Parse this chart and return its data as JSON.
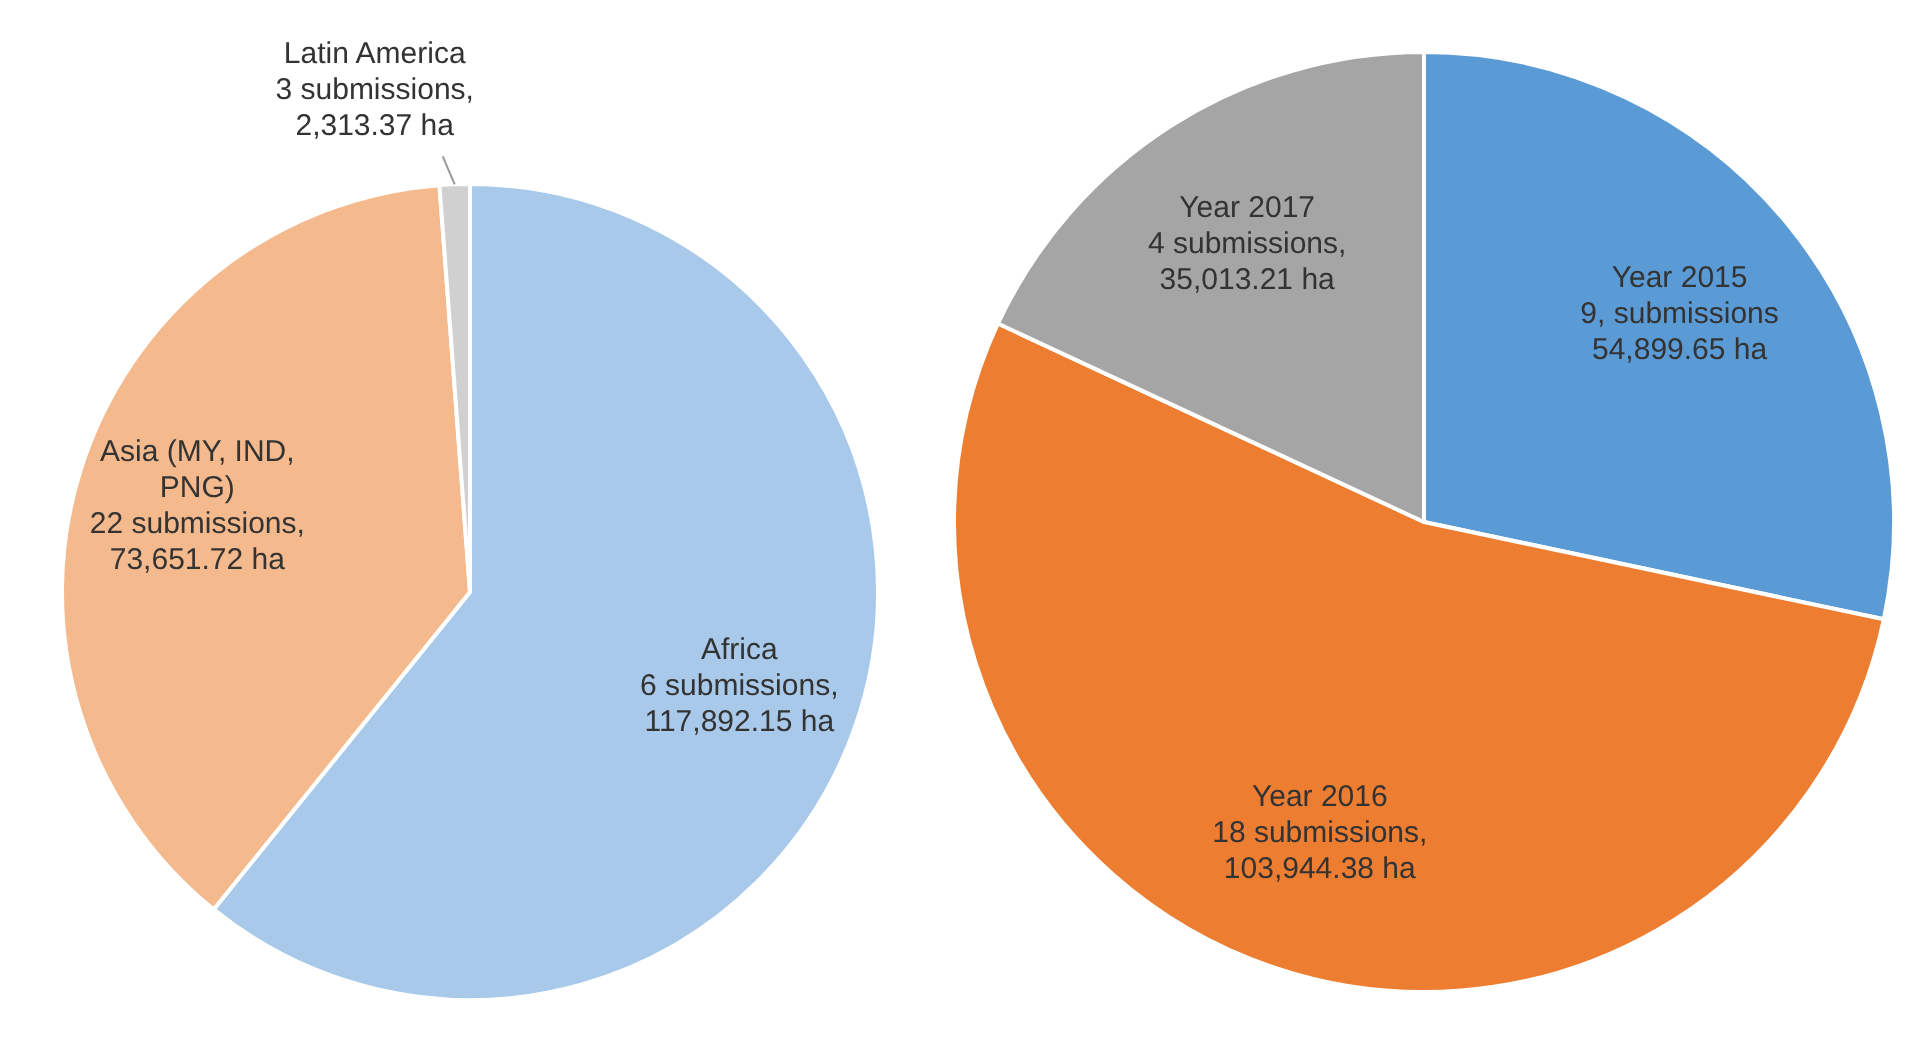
{
  "chart_data": [
    {
      "type": "pie",
      "categories": [
        "Africa",
        "Asia (MY, IND, PNG)",
        "Latin America"
      ],
      "values": [
        117892.15,
        73651.72,
        2313.37
      ],
      "colors": [
        "#a9c9ea",
        "#f5b98e",
        "#d0d0d0"
      ],
      "value_labels": [
        "6 submissions, 117,892.15 ha",
        "22 submissions, 73,651.72 ha",
        "3 submissions, 2,313.37 ha"
      ]
    },
    {
      "type": "pie",
      "categories": [
        "Year 2015",
        "Year 2016",
        "Year 2017"
      ],
      "values": [
        54899.65,
        103944.38,
        35013.21
      ],
      "colors": [
        "#5b9bd5",
        "#ed7d31",
        "#a5a5a5"
      ],
      "value_labels": [
        "9, submissions 54,899.65 ha",
        "18 submissions, 103,944.38 ha",
        "4 submissions, 35,013.21 ha"
      ]
    }
  ]
}
